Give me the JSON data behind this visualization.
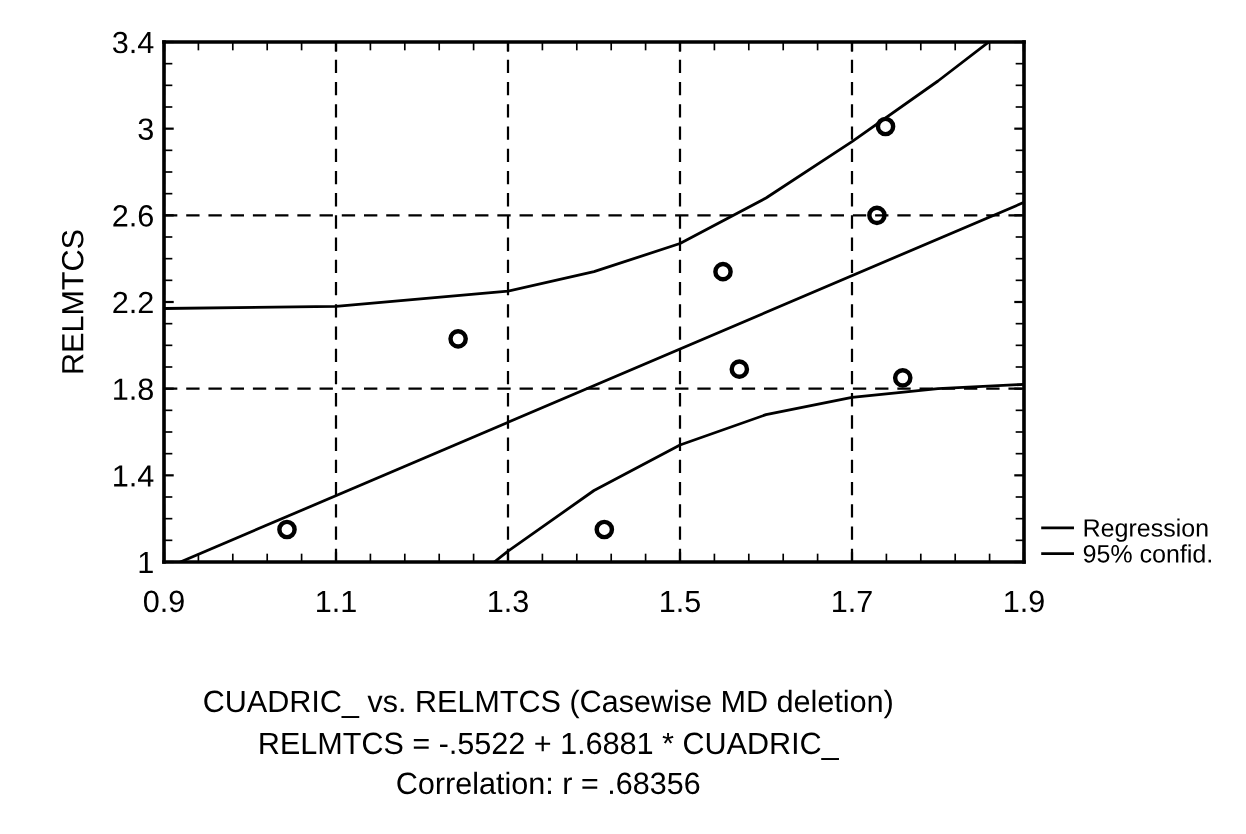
{
  "chart_data": {
    "type": "scatter",
    "title": "CUADRIC_ vs. RELMTCS (Casewise MD deletion)",
    "ylabel": "RELMTCS",
    "annotations": [
      "RELMTCS = -.5522 + 1.6881 * CUADRIC_",
      "Correlation: r = .68356"
    ],
    "xlim": [
      0.9,
      1.9
    ],
    "xticks": [
      0.9,
      1.1,
      1.3,
      1.5,
      1.7,
      1.9
    ],
    "ylim": [
      1,
      3.4
    ],
    "yticks": [
      1,
      1.4,
      1.8,
      2.2,
      2.6,
      3,
      3.4
    ],
    "grid": "x",
    "legend": "right",
    "ref_lines": [
      {
        "axis": "y",
        "value": 1.8,
        "label": null,
        "color": "#000000",
        "line_style": "dashed"
      },
      {
        "axis": "y",
        "value": 2.6,
        "label": null,
        "color": "#000000",
        "line_style": "dashed"
      }
    ],
    "series": [
      {
        "color": "#000000",
        "marker": "circle",
        "x": [
          1.043,
          1.242,
          1.412,
          1.55,
          1.569,
          1.739,
          1.729,
          1.759
        ],
        "values": [
          1.15,
          2.03,
          1.15,
          2.34,
          1.89,
          3.01,
          2.6,
          1.85
        ]
      },
      {
        "type": "line",
        "name": "Regression",
        "color": "#000000",
        "line_style": "solid",
        "x": [
          0.919,
          1.9
        ],
        "values": [
          1.0,
          2.66
        ]
      },
      {
        "type": "line",
        "name": "95% confid.",
        "color": "#000000",
        "line_style": "solid",
        "x": [
          0.9,
          1.1,
          1.3,
          1.4,
          1.5,
          1.6,
          1.7,
          1.8,
          1.859
        ],
        "values": [
          2.17,
          2.18,
          2.25,
          2.34,
          2.47,
          2.68,
          2.94,
          3.22,
          3.4
        ]
      },
      {
        "type": "line",
        "color": "#000000",
        "line_style": "solid",
        "x": [
          1.284,
          1.3,
          1.4,
          1.5,
          1.6,
          1.7,
          1.8,
          1.9
        ],
        "values": [
          1.0,
          1.05,
          1.33,
          1.54,
          1.68,
          1.76,
          1.8,
          1.82
        ]
      }
    ]
  }
}
